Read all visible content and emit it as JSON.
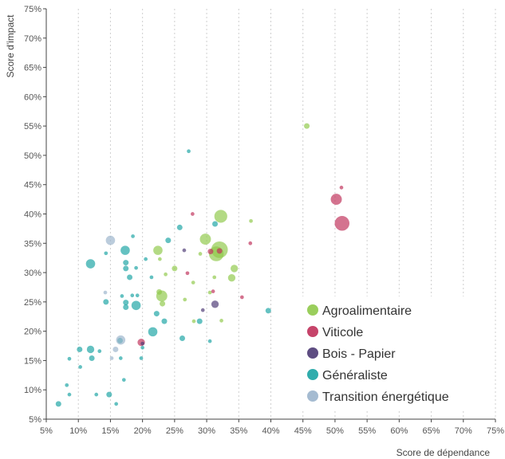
{
  "chart_data": {
    "type": "scatter",
    "xlabel": "Score de dépendance",
    "ylabel": "Score d'impact",
    "xlim": [
      5,
      75
    ],
    "ylim": [
      5,
      75
    ],
    "x_ticks": [
      "5%",
      "10%",
      "15%",
      "20%",
      "25%",
      "30%",
      "35%",
      "40%",
      "45%",
      "50%",
      "55%",
      "60%",
      "65%",
      "70%",
      "75%"
    ],
    "y_ticks": [
      "5%",
      "10%",
      "15%",
      "20%",
      "25%",
      "30%",
      "35%",
      "40%",
      "45%",
      "50%",
      "55%",
      "60%",
      "65%",
      "70%",
      "75%"
    ],
    "grid": "vertical",
    "legend_position": "bottom-right",
    "series": [
      {
        "name": "Agroalimentaire",
        "color": "#8fc94a",
        "points": [
          {
            "x": 45.6,
            "y": 55.0,
            "s": 2
          },
          {
            "x": 32.2,
            "y": 39.6,
            "s": 6
          },
          {
            "x": 29.8,
            "y": 35.7,
            "s": 5
          },
          {
            "x": 32.0,
            "y": 33.9,
            "s": 8
          },
          {
            "x": 31.5,
            "y": 33.2,
            "s": 7
          },
          {
            "x": 22.4,
            "y": 33.8,
            "s": 4
          },
          {
            "x": 34.3,
            "y": 30.7,
            "s": 3
          },
          {
            "x": 33.9,
            "y": 29.1,
            "s": 3
          },
          {
            "x": 23.0,
            "y": 26.0,
            "s": 5
          },
          {
            "x": 22.6,
            "y": 26.7,
            "s": 2
          },
          {
            "x": 23.1,
            "y": 24.7,
            "s": 2
          },
          {
            "x": 25.0,
            "y": 30.7,
            "s": 2
          },
          {
            "x": 23.6,
            "y": 29.7,
            "s": 1
          },
          {
            "x": 27.9,
            "y": 28.3,
            "s": 1
          },
          {
            "x": 30.5,
            "y": 26.6,
            "s": 1
          },
          {
            "x": 28.0,
            "y": 21.7,
            "s": 1
          },
          {
            "x": 32.3,
            "y": 21.8,
            "s": 1
          },
          {
            "x": 36.9,
            "y": 38.8,
            "s": 1
          },
          {
            "x": 31.2,
            "y": 29.2,
            "s": 1
          },
          {
            "x": 26.6,
            "y": 25.4,
            "s": 1
          },
          {
            "x": 29.0,
            "y": 33.2,
            "s": 1
          },
          {
            "x": 22.7,
            "y": 32.3,
            "s": 1
          }
        ]
      },
      {
        "name": "Viticole",
        "color": "#c0305a",
        "points": [
          {
            "x": 51.1,
            "y": 38.4,
            "s": 7
          },
          {
            "x": 50.2,
            "y": 42.5,
            "s": 5
          },
          {
            "x": 51.0,
            "y": 44.5,
            "s": 1
          },
          {
            "x": 32.0,
            "y": 33.7,
            "s": 2
          },
          {
            "x": 30.6,
            "y": 33.6,
            "s": 2
          },
          {
            "x": 19.8,
            "y": 18.1,
            "s": 3
          },
          {
            "x": 36.8,
            "y": 35.0,
            "s": 1
          },
          {
            "x": 35.5,
            "y": 25.8,
            "s": 1
          },
          {
            "x": 27.0,
            "y": 29.9,
            "s": 1
          },
          {
            "x": 31.0,
            "y": 26.8,
            "s": 1
          },
          {
            "x": 27.8,
            "y": 40.0,
            "s": 1
          }
        ]
      },
      {
        "name": "Bois - Papier",
        "color": "#4c3a74",
        "points": [
          {
            "x": 31.3,
            "y": 24.6,
            "s": 3
          },
          {
            "x": 26.5,
            "y": 33.8,
            "s": 1
          },
          {
            "x": 29.4,
            "y": 23.6,
            "s": 1
          },
          {
            "x": 20.0,
            "y": 17.9,
            "s": 1
          }
        ]
      },
      {
        "name": "Généraliste",
        "color": "#1aa3a3",
        "points": [
          {
            "x": 11.9,
            "y": 31.5,
            "s": 4
          },
          {
            "x": 17.3,
            "y": 33.8,
            "s": 4
          },
          {
            "x": 17.4,
            "y": 31.7,
            "s": 2
          },
          {
            "x": 17.4,
            "y": 30.7,
            "s": 2
          },
          {
            "x": 18.0,
            "y": 29.2,
            "s": 2
          },
          {
            "x": 19.0,
            "y": 30.8,
            "s": 1
          },
          {
            "x": 19.0,
            "y": 24.4,
            "s": 4
          },
          {
            "x": 17.4,
            "y": 24.1,
            "s": 2
          },
          {
            "x": 17.4,
            "y": 24.9,
            "s": 2
          },
          {
            "x": 18.4,
            "y": 26.1,
            "s": 1
          },
          {
            "x": 14.3,
            "y": 25.0,
            "s": 2
          },
          {
            "x": 14.3,
            "y": 33.3,
            "s": 1
          },
          {
            "x": 24.0,
            "y": 35.5,
            "s": 2
          },
          {
            "x": 25.8,
            "y": 37.7,
            "s": 2
          },
          {
            "x": 31.3,
            "y": 38.3,
            "s": 2
          },
          {
            "x": 27.2,
            "y": 50.7,
            "s": 1
          },
          {
            "x": 21.6,
            "y": 19.9,
            "s": 4
          },
          {
            "x": 22.2,
            "y": 23.0,
            "s": 2
          },
          {
            "x": 23.4,
            "y": 21.7,
            "s": 2
          },
          {
            "x": 20.0,
            "y": 17.2,
            "s": 1
          },
          {
            "x": 16.5,
            "y": 18.4,
            "s": 2
          },
          {
            "x": 19.8,
            "y": 15.4,
            "s": 1
          },
          {
            "x": 16.6,
            "y": 15.4,
            "s": 1
          },
          {
            "x": 11.9,
            "y": 16.9,
            "s": 3
          },
          {
            "x": 10.2,
            "y": 16.9,
            "s": 2
          },
          {
            "x": 13.3,
            "y": 16.6,
            "s": 1
          },
          {
            "x": 12.1,
            "y": 15.4,
            "s": 2
          },
          {
            "x": 10.3,
            "y": 13.9,
            "s": 1
          },
          {
            "x": 8.6,
            "y": 9.2,
            "s": 1
          },
          {
            "x": 6.9,
            "y": 7.6,
            "s": 2
          },
          {
            "x": 14.8,
            "y": 9.2,
            "s": 2
          },
          {
            "x": 17.1,
            "y": 11.7,
            "s": 1
          },
          {
            "x": 15.9,
            "y": 7.6,
            "s": 1
          },
          {
            "x": 26.2,
            "y": 18.8,
            "s": 2
          },
          {
            "x": 28.9,
            "y": 21.7,
            "s": 2
          },
          {
            "x": 30.5,
            "y": 18.3,
            "s": 1
          },
          {
            "x": 39.6,
            "y": 23.5,
            "s": 2
          },
          {
            "x": 21.4,
            "y": 29.2,
            "s": 1
          },
          {
            "x": 20.5,
            "y": 32.3,
            "s": 1
          },
          {
            "x": 18.5,
            "y": 36.2,
            "s": 1
          },
          {
            "x": 19.2,
            "y": 26.1,
            "s": 1
          },
          {
            "x": 16.8,
            "y": 26.0,
            "s": 1
          },
          {
            "x": 12.8,
            "y": 9.2,
            "s": 1
          },
          {
            "x": 8.2,
            "y": 10.8,
            "s": 1
          },
          {
            "x": 8.6,
            "y": 15.3,
            "s": 1
          }
        ]
      },
      {
        "name": "Transition énergétique",
        "color": "#9bb4cc",
        "points": [
          {
            "x": 15.0,
            "y": 35.5,
            "s": 4
          },
          {
            "x": 16.6,
            "y": 18.5,
            "s": 4
          },
          {
            "x": 15.8,
            "y": 16.9,
            "s": 2
          },
          {
            "x": 15.2,
            "y": 15.4,
            "s": 1
          },
          {
            "x": 14.2,
            "y": 26.6,
            "s": 1
          }
        ]
      }
    ]
  }
}
